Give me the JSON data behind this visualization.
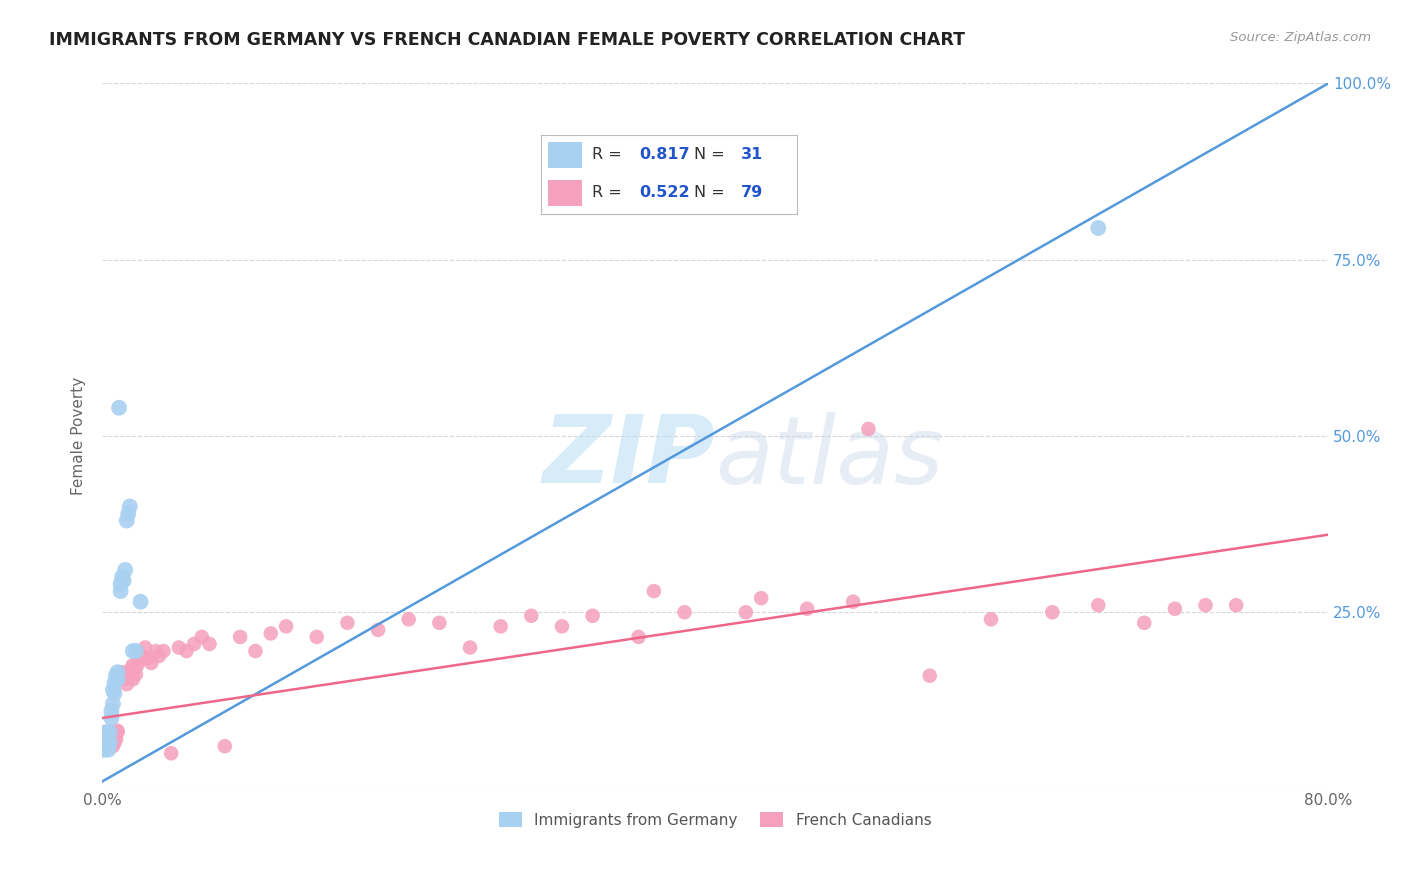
{
  "title": "IMMIGRANTS FROM GERMANY VS FRENCH CANADIAN FEMALE POVERTY CORRELATION CHART",
  "source": "Source: ZipAtlas.com",
  "ylabel": "Female Poverty",
  "xlim": [
    0.0,
    0.8
  ],
  "ylim": [
    0.0,
    1.0
  ],
  "xtick_positions": [
    0.0,
    0.1,
    0.2,
    0.3,
    0.4,
    0.5,
    0.6,
    0.7,
    0.8
  ],
  "xticklabels": [
    "0.0%",
    "",
    "",
    "",
    "",
    "",
    "",
    "",
    "80.0%"
  ],
  "ytick_positions": [
    0.0,
    0.25,
    0.5,
    0.75,
    1.0
  ],
  "yticklabels_right": [
    "",
    "25.0%",
    "50.0%",
    "75.0%",
    "100.0%"
  ],
  "color_blue": "#A8D0F0",
  "color_pink": "#F5A0BC",
  "line_blue": "#5599DD",
  "line_pink": "#EE6688",
  "legend_text_color": "#333333",
  "legend_val_color": "#3355BB",
  "blue_line_x0": 0.0,
  "blue_line_y0": 0.01,
  "blue_line_x1": 0.8,
  "blue_line_y1": 1.0,
  "pink_line_x0": 0.0,
  "pink_line_y0": 0.1,
  "pink_line_x1": 0.8,
  "pink_line_y1": 0.36,
  "blue_scatter_x": [
    0.001,
    0.002,
    0.002,
    0.003,
    0.003,
    0.004,
    0.004,
    0.005,
    0.005,
    0.006,
    0.006,
    0.007,
    0.007,
    0.008,
    0.008,
    0.009,
    0.01,
    0.01,
    0.011,
    0.012,
    0.012,
    0.013,
    0.014,
    0.015,
    0.016,
    0.017,
    0.018,
    0.02,
    0.022,
    0.025,
    0.65
  ],
  "blue_scatter_y": [
    0.055,
    0.06,
    0.065,
    0.06,
    0.08,
    0.055,
    0.07,
    0.065,
    0.08,
    0.1,
    0.11,
    0.12,
    0.14,
    0.135,
    0.15,
    0.16,
    0.155,
    0.165,
    0.54,
    0.28,
    0.29,
    0.3,
    0.295,
    0.31,
    0.38,
    0.39,
    0.4,
    0.195,
    0.195,
    0.265,
    0.795
  ],
  "pink_scatter_x": [
    0.001,
    0.001,
    0.002,
    0.002,
    0.003,
    0.003,
    0.004,
    0.004,
    0.005,
    0.005,
    0.006,
    0.006,
    0.007,
    0.007,
    0.008,
    0.008,
    0.009,
    0.01,
    0.01,
    0.011,
    0.012,
    0.013,
    0.014,
    0.015,
    0.016,
    0.017,
    0.018,
    0.019,
    0.02,
    0.02,
    0.021,
    0.022,
    0.023,
    0.024,
    0.025,
    0.027,
    0.028,
    0.03,
    0.032,
    0.035,
    0.037,
    0.04,
    0.045,
    0.05,
    0.055,
    0.06,
    0.065,
    0.07,
    0.08,
    0.09,
    0.1,
    0.11,
    0.12,
    0.14,
    0.16,
    0.18,
    0.2,
    0.22,
    0.24,
    0.26,
    0.28,
    0.3,
    0.32,
    0.35,
    0.38,
    0.42,
    0.46,
    0.5,
    0.54,
    0.58,
    0.62,
    0.65,
    0.68,
    0.7,
    0.72,
    0.74,
    0.43,
    0.49,
    0.36
  ],
  "pink_scatter_y": [
    0.075,
    0.08,
    0.07,
    0.075,
    0.08,
    0.072,
    0.068,
    0.078,
    0.07,
    0.075,
    0.065,
    0.07,
    0.068,
    0.06,
    0.065,
    0.075,
    0.07,
    0.08,
    0.082,
    0.155,
    0.16,
    0.165,
    0.155,
    0.16,
    0.148,
    0.158,
    0.165,
    0.17,
    0.175,
    0.155,
    0.17,
    0.162,
    0.175,
    0.185,
    0.19,
    0.185,
    0.2,
    0.185,
    0.178,
    0.195,
    0.188,
    0.195,
    0.05,
    0.2,
    0.195,
    0.205,
    0.215,
    0.205,
    0.06,
    0.215,
    0.195,
    0.22,
    0.23,
    0.215,
    0.235,
    0.225,
    0.24,
    0.235,
    0.2,
    0.23,
    0.245,
    0.23,
    0.245,
    0.215,
    0.25,
    0.25,
    0.255,
    0.51,
    0.16,
    0.24,
    0.25,
    0.26,
    0.235,
    0.255,
    0.26,
    0.26,
    0.27,
    0.265,
    0.28
  ]
}
